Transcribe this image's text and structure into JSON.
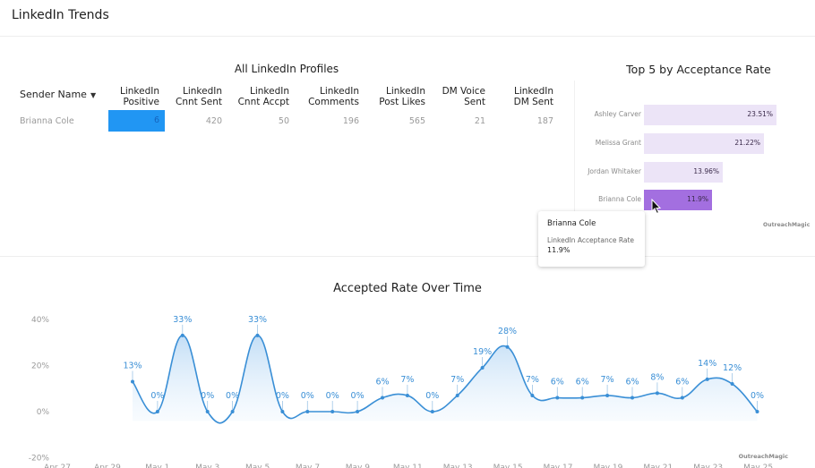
{
  "header": {
    "title": "LinkedIn Trends"
  },
  "profiles_table": {
    "title": "All LinkedIn Profiles",
    "sender_header": "Sender Name",
    "sort_icon": "caret-down-icon",
    "columns": [
      {
        "line1": "LinkedIn",
        "line2": "Positive"
      },
      {
        "line1": "LinkedIn",
        "line2": "Cnnt Sent"
      },
      {
        "line1": "LinkedIn",
        "line2": "Cnnt Accpt"
      },
      {
        "line1": "LinkedIn",
        "line2": "Comments"
      },
      {
        "line1": "LinkedIn",
        "line2": "Post Likes"
      },
      {
        "line1": "DM Voice",
        "line2": "Sent"
      },
      {
        "line1": "LinkedIn",
        "line2": "DM Sent"
      }
    ],
    "rows": [
      {
        "name": "Brianna Cole",
        "values": [
          "6",
          "420",
          "50",
          "196",
          "565",
          "21",
          "187"
        ]
      }
    ],
    "highlight_color": "#2196f3"
  },
  "top5": {
    "title": "Top 5 by Acceptance Rate",
    "bars": [
      {
        "name": "Ashley Carver",
        "value": 23.51,
        "label": "23.51%"
      },
      {
        "name": "Melissa Grant",
        "value": 21.22,
        "label": "21.22%"
      },
      {
        "name": "Jordan Whitaker",
        "value": 13.96,
        "label": "13.96%"
      },
      {
        "name": "Brianna Cole",
        "value": 11.9,
        "label": "11.9%",
        "active": true
      }
    ],
    "bar_color": "#ece4f7",
    "active_color": "#a36fe0",
    "logo": "OutreachMagic"
  },
  "tooltip": {
    "name": "Brianna Cole",
    "metric": "LinkedIn Acceptance Rate",
    "value": "11.9%"
  },
  "chart_data": {
    "type": "line",
    "title": "Accepted Rate Over Time",
    "xlabel": "",
    "ylabel": "",
    "ylim": [
      -20,
      40
    ],
    "yticks": [
      "40%",
      "20%",
      "0%",
      "-20%"
    ],
    "xtick_labels": [
      "Apr 27",
      "Apr 29",
      "May 1",
      "May 3",
      "May 5",
      "May 7",
      "May 9",
      "May 11",
      "May 13",
      "May 15",
      "May 17",
      "May 19",
      "May 21",
      "May 23",
      "May 25"
    ],
    "x": [
      "Apr 30",
      "May 1",
      "May 2",
      "May 3",
      "May 4",
      "May 5",
      "May 6",
      "May 7",
      "May 8",
      "May 9",
      "May 10",
      "May 11",
      "May 12",
      "May 13",
      "May 14",
      "May 15",
      "May 16",
      "May 17",
      "May 18",
      "May 19",
      "May 20",
      "May 21",
      "May 22",
      "May 23",
      "May 24",
      "May 25"
    ],
    "series": [
      {
        "name": "Accepted Rate",
        "values": [
          13,
          0,
          33,
          0,
          0,
          33,
          0,
          0,
          0,
          0,
          6,
          7,
          0,
          7,
          19,
          28,
          7,
          6,
          6,
          7,
          6,
          8,
          6,
          14,
          12,
          0
        ],
        "color": "#3a8fd6"
      }
    ],
    "grid": false,
    "legend": "none",
    "logo": "OutreachMagic"
  }
}
